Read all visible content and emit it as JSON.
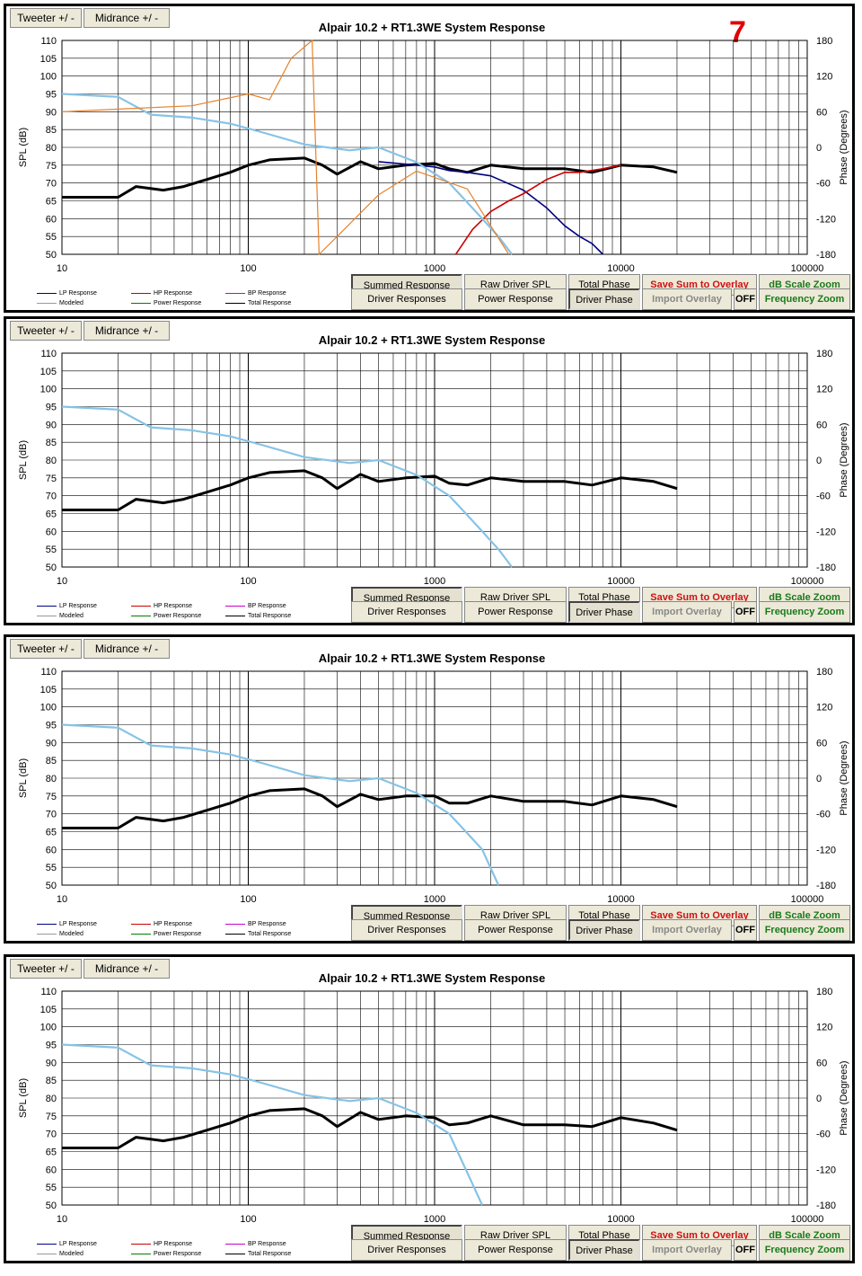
{
  "page_marker": "7",
  "tabs": {
    "tweeter": "Tweeter +/ -",
    "midrange": "Midrance  +/ -"
  },
  "title": "Alpair 10.2 + RT1.3WE     System Response",
  "buttons": {
    "summed": "Summed Response",
    "raw": "Raw Driver SPL",
    "total_phase": "Total Phase",
    "save": "Save Sum to Overlay",
    "db_zoom": "dB Scale Zoom",
    "driver_resp": "Driver Responses",
    "power": "Power Response",
    "driver_phase": "Driver Phase",
    "import": "Import Overlay",
    "off": "OFF",
    "freq_zoom": "Frequency Zoom"
  },
  "legend": [
    {
      "label": "LP Response",
      "color": "#000080"
    },
    {
      "label": "HP Response",
      "color": "#cc0000"
    },
    {
      "label": "BP Response",
      "color": "#cc00cc"
    },
    {
      "label": "Modeled",
      "color": "#999999"
    },
    {
      "label": "Power Response",
      "color": "#008000"
    },
    {
      "label": "Total Response",
      "color": "#000000"
    }
  ],
  "colors": {
    "total": "#000000",
    "lp": "#000080",
    "hp": "#cc0000",
    "phase_total": "#87c3e6",
    "phase_driver": "#e8822a"
  },
  "chart_data": [
    {
      "type": "line",
      "title": "Alpair 10.2 + RT1.3WE     System Response",
      "xlabel": "",
      "ylabel": "SPL (dB)",
      "y2label": "Phase (Degrees)",
      "xscale": "log",
      "xlim": [
        10,
        100000
      ],
      "ylim": [
        50,
        110
      ],
      "y2lim": [
        -180,
        180
      ],
      "xticks": [
        "10",
        "100",
        "1000",
        "10000",
        "100000"
      ],
      "yticks": [
        "50",
        "55",
        "60",
        "65",
        "70",
        "75",
        "80",
        "85",
        "90",
        "95",
        "100",
        "105",
        "110"
      ],
      "y2ticks": [
        "-180",
        "-120",
        "-60",
        "0",
        "60",
        "120",
        "180"
      ],
      "grid": true,
      "series": [
        {
          "name": "Total Response",
          "x": [
            10,
            20,
            25,
            35,
            45,
            60,
            80,
            100,
            130,
            200,
            250,
            300,
            400,
            500,
            700,
            1000,
            1200,
            1500,
            2000,
            3000,
            5000,
            7000,
            10000,
            15000,
            20000
          ],
          "y": [
            66,
            66,
            69,
            68,
            69,
            71,
            73,
            75,
            76.5,
            77,
            75,
            72.5,
            76,
            74,
            75,
            75.5,
            74,
            73,
            75,
            74,
            74,
            73,
            75,
            74.5,
            73
          ]
        },
        {
          "name": "LP Response",
          "x": [
            500,
            800,
            1000,
            1200,
            1500,
            2000,
            3000,
            4000,
            5000,
            6000,
            7000,
            8000
          ],
          "y": [
            76,
            75,
            74.5,
            73.5,
            73,
            72,
            68,
            63,
            58,
            55,
            53,
            50
          ]
        },
        {
          "name": "HP Response",
          "x": [
            1300,
            1600,
            2000,
            2500,
            3000,
            4000,
            5000,
            6000,
            8000,
            10000
          ],
          "y": [
            50,
            57,
            62,
            65,
            67,
            71,
            73,
            73,
            74,
            75
          ]
        },
        {
          "name": "Total Phase",
          "x": [
            10,
            20,
            30,
            50,
            80,
            120,
            200,
            350,
            500,
            800,
            1200,
            1800,
            2200,
            2600
          ],
          "y": [
            90,
            85,
            55,
            50,
            40,
            25,
            5,
            -5,
            0,
            -25,
            -60,
            -120,
            -150,
            -180
          ]
        },
        {
          "name": "Driver Phase",
          "x": [
            10,
            50,
            100,
            130,
            170,
            220,
            240,
            300,
            500,
            800,
            1500,
            2500
          ],
          "y": [
            60,
            70,
            90,
            80,
            150,
            180,
            -180,
            -150,
            -80,
            -40,
            -70,
            -180
          ]
        }
      ]
    },
    {
      "type": "line",
      "title": "Alpair 10.2 + RT1.3WE     System Response",
      "ylabel": "SPL (dB)",
      "y2label": "Phase (Degrees)",
      "xscale": "log",
      "xlim": [
        10,
        100000
      ],
      "ylim": [
        50,
        110
      ],
      "y2lim": [
        -180,
        180
      ],
      "series": [
        {
          "name": "Total Response",
          "x": [
            10,
            20,
            25,
            35,
            45,
            60,
            80,
            100,
            130,
            200,
            250,
            300,
            400,
            500,
            700,
            1000,
            1200,
            1500,
            2000,
            3000,
            5000,
            7000,
            10000,
            15000,
            20000
          ],
          "y": [
            66,
            66,
            69,
            68,
            69,
            71,
            73,
            75,
            76.5,
            77,
            75,
            72,
            76,
            74,
            75,
            75.5,
            73.5,
            73,
            75,
            74,
            74,
            73,
            75,
            74,
            72
          ]
        },
        {
          "name": "Total Phase",
          "x": [
            10,
            20,
            30,
            50,
            80,
            120,
            200,
            350,
            500,
            800,
            1200,
            1800,
            2200,
            2600
          ],
          "y": [
            90,
            85,
            55,
            50,
            40,
            25,
            5,
            -5,
            0,
            -25,
            -60,
            -120,
            -150,
            -180
          ]
        }
      ]
    },
    {
      "type": "line",
      "title": "Alpair 10.2 + RT1.3WE     System Response",
      "ylabel": "SPL (dB)",
      "y2label": "Phase (Degrees)",
      "xscale": "log",
      "xlim": [
        10,
        100000
      ],
      "ylim": [
        50,
        110
      ],
      "y2lim": [
        -180,
        180
      ],
      "series": [
        {
          "name": "Total Response",
          "x": [
            10,
            20,
            25,
            35,
            45,
            60,
            80,
            100,
            130,
            200,
            250,
            300,
            400,
            500,
            700,
            1000,
            1200,
            1500,
            2000,
            3000,
            5000,
            7000,
            10000,
            15000,
            20000
          ],
          "y": [
            66,
            66,
            69,
            68,
            69,
            71,
            73,
            75,
            76.5,
            77,
            75,
            72,
            75.5,
            74,
            75,
            75,
            73,
            73,
            75,
            73.5,
            73.5,
            72.5,
            75,
            74,
            72
          ]
        },
        {
          "name": "Total Phase",
          "x": [
            10,
            20,
            30,
            50,
            80,
            120,
            200,
            350,
            500,
            800,
            1200,
            1800,
            2200
          ],
          "y": [
            90,
            85,
            55,
            50,
            40,
            25,
            5,
            -5,
            0,
            -25,
            -60,
            -120,
            -180
          ]
        }
      ]
    },
    {
      "type": "line",
      "title": "Alpair 10.2 + RT1.3WE     System Response",
      "ylabel": "SPL (dB)",
      "y2label": "Phase (Degrees)",
      "xscale": "log",
      "xlim": [
        10,
        100000
      ],
      "ylim": [
        50,
        110
      ],
      "y2lim": [
        -180,
        180
      ],
      "series": [
        {
          "name": "Total Response",
          "x": [
            10,
            20,
            25,
            35,
            45,
            60,
            80,
            100,
            130,
            200,
            250,
            300,
            400,
            500,
            700,
            1000,
            1200,
            1500,
            2000,
            3000,
            5000,
            7000,
            10000,
            15000,
            20000
          ],
          "y": [
            66,
            66,
            69,
            68,
            69,
            71,
            73,
            75,
            76.5,
            77,
            75,
            72,
            76,
            74,
            75,
            74.5,
            72.5,
            73,
            75,
            72.5,
            72.5,
            72,
            74.5,
            73,
            71
          ]
        },
        {
          "name": "Total Phase",
          "x": [
            10,
            20,
            30,
            50,
            80,
            120,
            200,
            350,
            500,
            800,
            1200,
            1800
          ],
          "y": [
            90,
            85,
            55,
            50,
            40,
            25,
            5,
            -5,
            0,
            -25,
            -60,
            -180
          ]
        }
      ]
    }
  ]
}
